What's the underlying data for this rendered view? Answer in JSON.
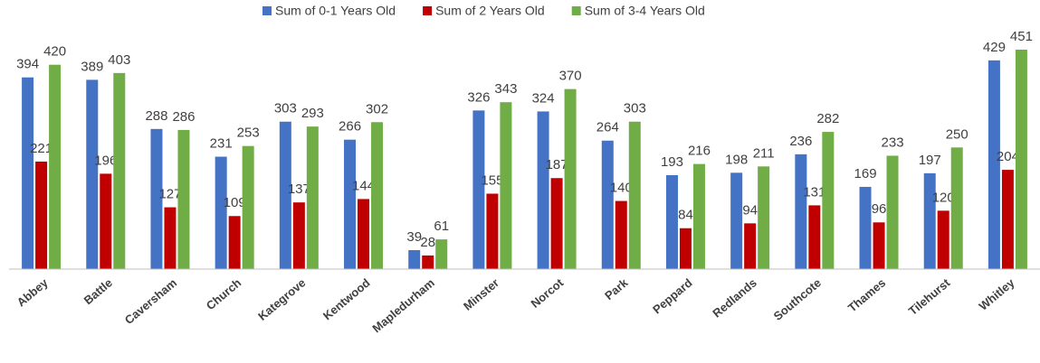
{
  "chart_data": {
    "type": "bar",
    "categories": [
      "Abbey",
      "Battle",
      "Caversham",
      "Church",
      "Kategrove",
      "Kentwood",
      "Mapledurham",
      "Minster",
      "Norcot",
      "Park",
      "Peppard",
      "Redlands",
      "Southcote",
      "Thames",
      "Tilehurst",
      "Whitley"
    ],
    "series": [
      {
        "name": "Sum of 0-1 Years Old",
        "color": "#4472c4",
        "values": [
          394,
          389,
          288,
          231,
          303,
          266,
          39,
          326,
          324,
          264,
          193,
          198,
          236,
          169,
          197,
          429
        ]
      },
      {
        "name": "Sum of 2 Years Old",
        "color": "#c00000",
        "values": [
          221,
          196,
          127,
          109,
          137,
          144,
          28,
          155,
          187,
          140,
          84,
          94,
          131,
          96,
          120,
          204
        ]
      },
      {
        "name": "Sum of 3-4 Years Old",
        "color": "#70ad47",
        "values": [
          420,
          403,
          286,
          253,
          293,
          302,
          61,
          343,
          370,
          303,
          216,
          211,
          282,
          233,
          250,
          451
        ]
      }
    ],
    "legend": "top"
  }
}
